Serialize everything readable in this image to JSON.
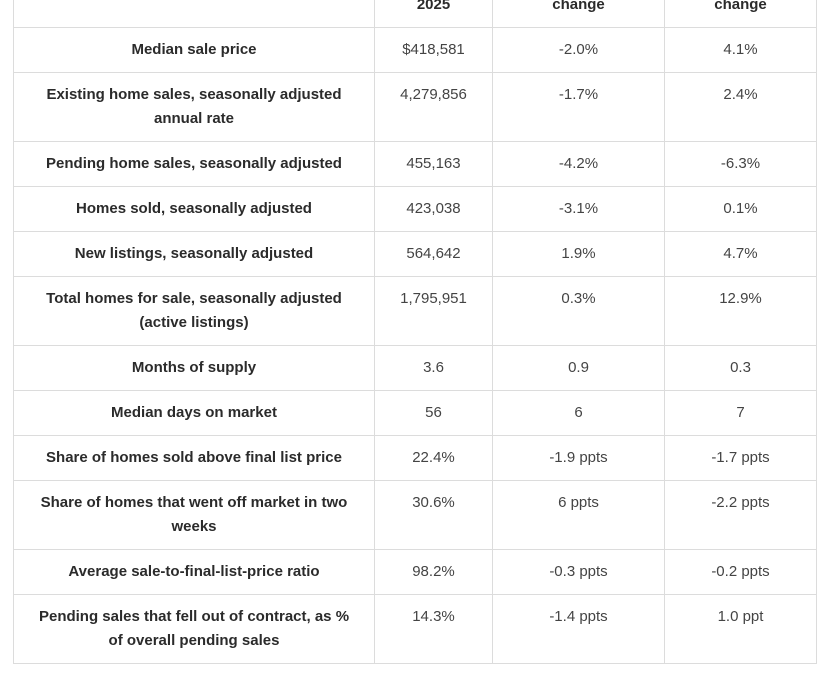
{
  "table": {
    "headers": [
      "",
      "2025",
      "change",
      "change"
    ],
    "rows": [
      {
        "label": "Median sale price",
        "value": "$418,581",
        "change_1": "-2.0%",
        "change_2": "4.1%"
      },
      {
        "label": "Existing home sales, seasonally adjusted annual rate",
        "value": "4,279,856",
        "change_1": "-1.7%",
        "change_2": "2.4%"
      },
      {
        "label": "Pending home sales, seasonally adjusted",
        "value": "455,163",
        "change_1": "-4.2%",
        "change_2": "-6.3%"
      },
      {
        "label": "Homes sold, seasonally adjusted",
        "value": "423,038",
        "change_1": "-3.1%",
        "change_2": "0.1%"
      },
      {
        "label": "New listings, seasonally adjusted",
        "value": "564,642",
        "change_1": "1.9%",
        "change_2": "4.7%"
      },
      {
        "label": "Total homes for sale, seasonally adjusted (active listings)",
        "value": "1,795,951",
        "change_1": "0.3%",
        "change_2": "12.9%"
      },
      {
        "label": "Months of supply",
        "value": "3.6",
        "change_1": "0.9",
        "change_2": "0.3"
      },
      {
        "label": "Median days on market",
        "value": "56",
        "change_1": "6",
        "change_2": "7"
      },
      {
        "label": "Share of homes sold above final list price",
        "value": "22.4%",
        "change_1": "-1.9 ppts",
        "change_2": "-1.7 ppts"
      },
      {
        "label": "Share of homes that went off market in two weeks",
        "value": "30.6%",
        "change_1": "6 ppts",
        "change_2": "-2.2 ppts"
      },
      {
        "label": "Average sale-to-final-list-price ratio",
        "value": "98.2%",
        "change_1": "-0.3 ppts",
        "change_2": "-0.2 ppts"
      },
      {
        "label": "Pending sales that fell out of contract, as % of overall pending sales",
        "value": "14.3%",
        "change_1": "-1.4 ppts",
        "change_2": "1.0 ppt"
      }
    ]
  }
}
